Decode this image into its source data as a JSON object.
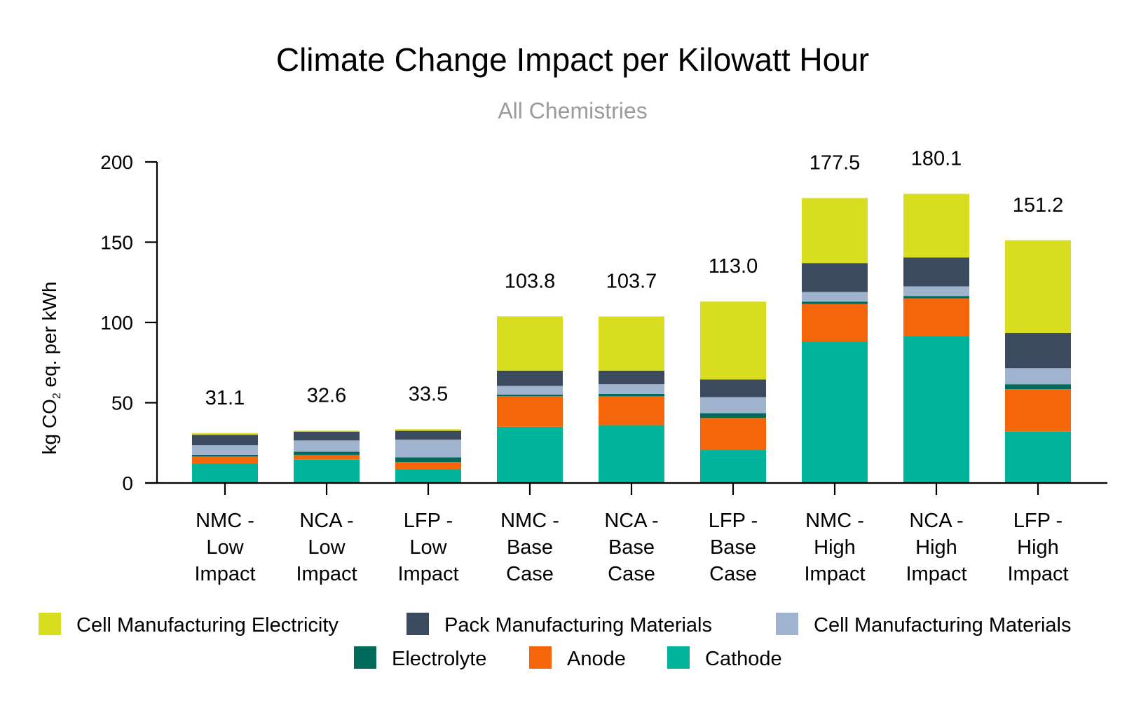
{
  "chart_data": {
    "type": "bar",
    "stacked": true,
    "title": "Climate Change Impact per Kilowatt Hour",
    "subtitle": "All Chemistries",
    "ylabel_parts": [
      "kg CO",
      "2",
      " eq. per kWh"
    ],
    "ylim": [
      0,
      200
    ],
    "yticks": [
      0,
      50,
      100,
      150,
      200
    ],
    "legend_placement": "bottom",
    "categories": [
      [
        "NMC -",
        "Low",
        "Impact"
      ],
      [
        "NCA -",
        "Low",
        "Impact"
      ],
      [
        "LFP -",
        "Low",
        "Impact"
      ],
      [
        "NMC -",
        "Base",
        "Case"
      ],
      [
        "NCA -",
        "Base",
        "Case"
      ],
      [
        "LFP -",
        "Base",
        "Case"
      ],
      [
        "NMC -",
        "High",
        "Impact"
      ],
      [
        "NCA -",
        "High",
        "Impact"
      ],
      [
        "LFP -",
        "High",
        "Impact"
      ]
    ],
    "totals": [
      "31.1",
      "32.6",
      "33.5",
      "103.8",
      "103.7",
      "113.0",
      "177.5",
      "180.1",
      "151.2"
    ],
    "series": [
      {
        "name": "Cathode",
        "color": "#00b39b",
        "values": [
          12.0,
          14.5,
          8.5,
          35.0,
          36.0,
          20.5,
          88.0,
          91.5,
          32.0
        ]
      },
      {
        "name": "Anode",
        "color": "#f5660a",
        "values": [
          4.5,
          3.0,
          4.5,
          19.0,
          18.0,
          20.0,
          23.5,
          23.5,
          26.5
        ]
      },
      {
        "name": "Electrolyte",
        "color": "#006b5b",
        "values": [
          1.0,
          2.0,
          3.0,
          1.0,
          1.5,
          3.0,
          1.5,
          1.5,
          3.0
        ]
      },
      {
        "name": "Cell Manufacturing Materials",
        "color": "#9fb3cf",
        "values": [
          6.0,
          7.0,
          11.0,
          5.5,
          6.0,
          10.0,
          6.0,
          6.0,
          10.0
        ]
      },
      {
        "name": "Pack Manufacturing Materials",
        "color": "#3b4a5e",
        "values": [
          6.5,
          5.5,
          5.5,
          9.5,
          8.5,
          11.0,
          18.0,
          18.0,
          22.0
        ]
      },
      {
        "name": "Cell Manufacturing Electricity",
        "color": "#d9dd20",
        "values": [
          1.1,
          0.6,
          1.0,
          33.8,
          33.7,
          48.5,
          40.5,
          39.6,
          57.7
        ]
      }
    ],
    "legend_order": [
      "Cell Manufacturing Electricity",
      "Pack Manufacturing Materials",
      "Cell Manufacturing Materials",
      "Electrolyte",
      "Anode",
      "Cathode"
    ]
  }
}
